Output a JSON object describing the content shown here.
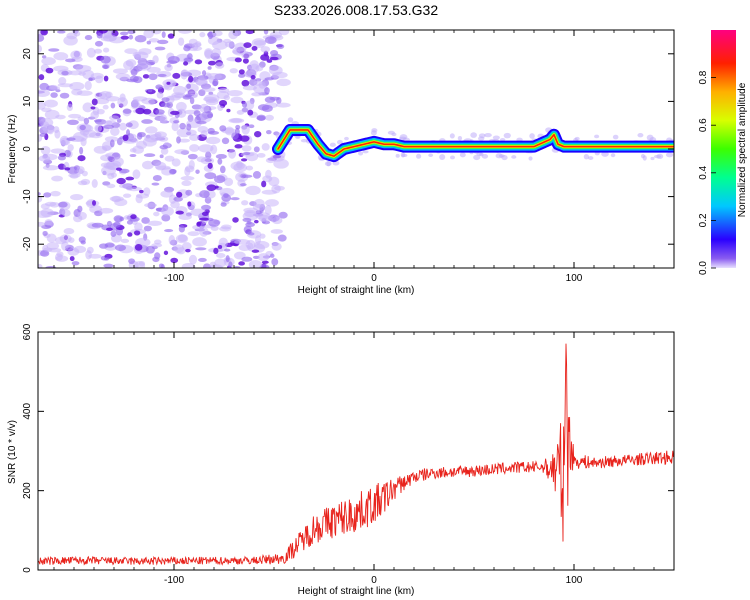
{
  "chart_data": [
    {
      "type": "heatmap",
      "title": "S233.2026.008.17.53.G32",
      "xlabel": "Height of straight line (km)",
      "ylabel": "Frequency (Hz)",
      "xlim": [
        -168,
        150
      ],
      "ylim": [
        -25,
        25
      ],
      "x_ticks": [
        -100,
        0,
        100
      ],
      "y_ticks": [
        -20,
        -10,
        0,
        10,
        20
      ],
      "noise_region_x": [
        -168,
        -45
      ],
      "ridge_x": [
        -48,
        -42,
        -38,
        -33,
        -28,
        -24,
        -20,
        -15,
        -10,
        -5,
        0,
        5,
        10,
        15,
        20,
        40,
        60,
        80,
        88,
        90,
        92,
        95,
        100,
        120,
        140,
        150
      ],
      "ridge_freq": [
        0,
        4,
        4,
        4,
        1,
        -1,
        -1.5,
        0,
        0.5,
        1,
        1.5,
        1,
        1,
        0.5,
        0.5,
        0.5,
        0.5,
        0.5,
        2,
        3,
        1,
        0.5,
        0.5,
        0.5,
        0.5,
        0.5
      ],
      "colorbar": {
        "label": "Normalized spectral amplitude",
        "ticks": [
          "0.0",
          "0.2",
          "0.4",
          "0.6",
          "0.8"
        ],
        "range": [
          0,
          1
        ]
      }
    },
    {
      "type": "line",
      "xlabel": "Height of straight line (km)",
      "ylabel": "SNR (10 * v/v)",
      "xlim": [
        -168,
        150
      ],
      "ylim": [
        0,
        600
      ],
      "x_ticks": [
        -100,
        0,
        100
      ],
      "y_ticks": [
        0,
        200,
        400,
        600
      ],
      "series": [
        {
          "name": "SNR",
          "color": "#e8231c",
          "x": [
            -168,
            -150,
            -120,
            -90,
            -60,
            -45,
            -40,
            -35,
            -30,
            -20,
            -10,
            0,
            5,
            10,
            15,
            20,
            30,
            50,
            70,
            85,
            90,
            93,
            95,
            96,
            97,
            98,
            100,
            110,
            130,
            150
          ],
          "values": [
            22,
            24,
            22,
            23,
            24,
            30,
            55,
            80,
            105,
            125,
            140,
            165,
            180,
            205,
            220,
            235,
            245,
            250,
            258,
            260,
            255,
            245,
            210,
            580,
            270,
            330,
            275,
            270,
            278,
            285
          ],
          "spread": [
            10,
            10,
            10,
            10,
            10,
            15,
            25,
            30,
            40,
            45,
            50,
            50,
            45,
            30,
            20,
            18,
            15,
            15,
            15,
            15,
            60,
            140,
            150,
            20,
            160,
            90,
            20,
            15,
            15,
            18
          ]
        }
      ]
    }
  ]
}
